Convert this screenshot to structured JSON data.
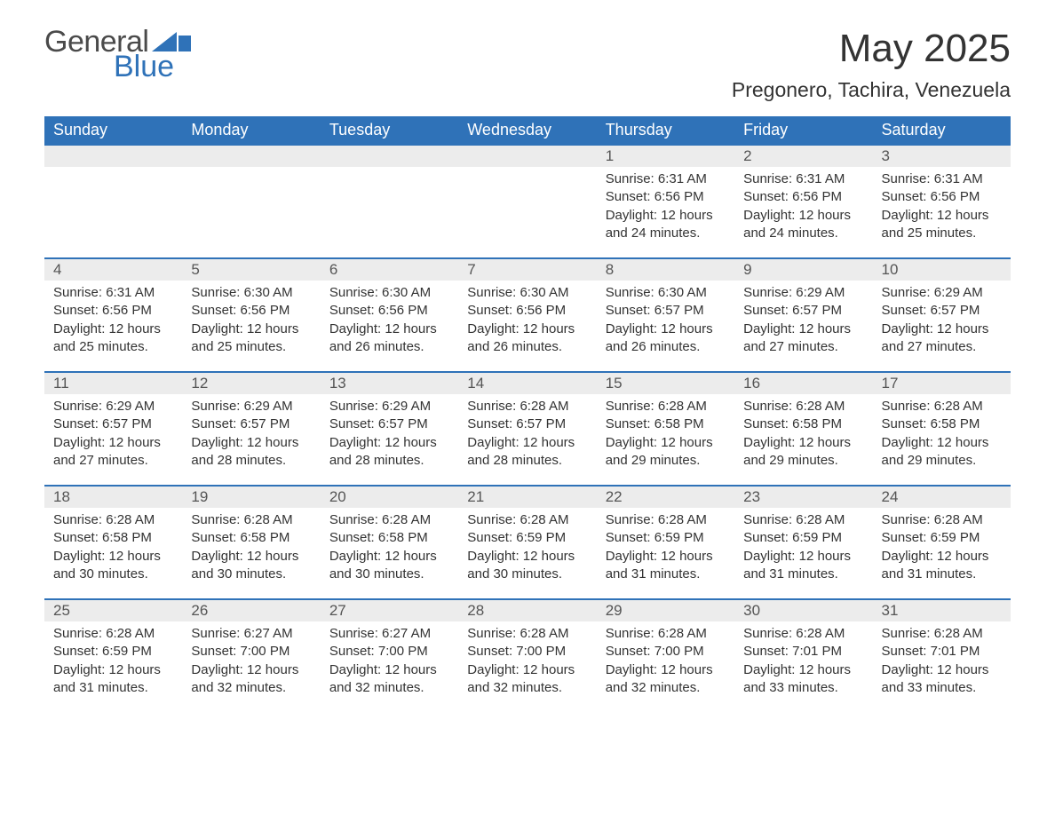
{
  "brand": {
    "part1": "General",
    "part2": "Blue",
    "flag_color": "#2f72b8"
  },
  "title": "May 2025",
  "location": "Pregonero, Tachira, Venezuela",
  "colors": {
    "header_bg": "#2f72b8",
    "header_text": "#ffffff",
    "daynum_bg": "#ececec",
    "border": "#2f72b8",
    "text": "#333333",
    "page_bg": "#ffffff"
  },
  "columns": [
    "Sunday",
    "Monday",
    "Tuesday",
    "Wednesday",
    "Thursday",
    "Friday",
    "Saturday"
  ],
  "weeks": [
    [
      null,
      null,
      null,
      null,
      {
        "n": "1",
        "sunrise": "6:31 AM",
        "sunset": "6:56 PM",
        "daylight": "12 hours and 24 minutes."
      },
      {
        "n": "2",
        "sunrise": "6:31 AM",
        "sunset": "6:56 PM",
        "daylight": "12 hours and 24 minutes."
      },
      {
        "n": "3",
        "sunrise": "6:31 AM",
        "sunset": "6:56 PM",
        "daylight": "12 hours and 25 minutes."
      }
    ],
    [
      {
        "n": "4",
        "sunrise": "6:31 AM",
        "sunset": "6:56 PM",
        "daylight": "12 hours and 25 minutes."
      },
      {
        "n": "5",
        "sunrise": "6:30 AM",
        "sunset": "6:56 PM",
        "daylight": "12 hours and 25 minutes."
      },
      {
        "n": "6",
        "sunrise": "6:30 AM",
        "sunset": "6:56 PM",
        "daylight": "12 hours and 26 minutes."
      },
      {
        "n": "7",
        "sunrise": "6:30 AM",
        "sunset": "6:56 PM",
        "daylight": "12 hours and 26 minutes."
      },
      {
        "n": "8",
        "sunrise": "6:30 AM",
        "sunset": "6:57 PM",
        "daylight": "12 hours and 26 minutes."
      },
      {
        "n": "9",
        "sunrise": "6:29 AM",
        "sunset": "6:57 PM",
        "daylight": "12 hours and 27 minutes."
      },
      {
        "n": "10",
        "sunrise": "6:29 AM",
        "sunset": "6:57 PM",
        "daylight": "12 hours and 27 minutes."
      }
    ],
    [
      {
        "n": "11",
        "sunrise": "6:29 AM",
        "sunset": "6:57 PM",
        "daylight": "12 hours and 27 minutes."
      },
      {
        "n": "12",
        "sunrise": "6:29 AM",
        "sunset": "6:57 PM",
        "daylight": "12 hours and 28 minutes."
      },
      {
        "n": "13",
        "sunrise": "6:29 AM",
        "sunset": "6:57 PM",
        "daylight": "12 hours and 28 minutes."
      },
      {
        "n": "14",
        "sunrise": "6:28 AM",
        "sunset": "6:57 PM",
        "daylight": "12 hours and 28 minutes."
      },
      {
        "n": "15",
        "sunrise": "6:28 AM",
        "sunset": "6:58 PM",
        "daylight": "12 hours and 29 minutes."
      },
      {
        "n": "16",
        "sunrise": "6:28 AM",
        "sunset": "6:58 PM",
        "daylight": "12 hours and 29 minutes."
      },
      {
        "n": "17",
        "sunrise": "6:28 AM",
        "sunset": "6:58 PM",
        "daylight": "12 hours and 29 minutes."
      }
    ],
    [
      {
        "n": "18",
        "sunrise": "6:28 AM",
        "sunset": "6:58 PM",
        "daylight": "12 hours and 30 minutes."
      },
      {
        "n": "19",
        "sunrise": "6:28 AM",
        "sunset": "6:58 PM",
        "daylight": "12 hours and 30 minutes."
      },
      {
        "n": "20",
        "sunrise": "6:28 AM",
        "sunset": "6:58 PM",
        "daylight": "12 hours and 30 minutes."
      },
      {
        "n": "21",
        "sunrise": "6:28 AM",
        "sunset": "6:59 PM",
        "daylight": "12 hours and 30 minutes."
      },
      {
        "n": "22",
        "sunrise": "6:28 AM",
        "sunset": "6:59 PM",
        "daylight": "12 hours and 31 minutes."
      },
      {
        "n": "23",
        "sunrise": "6:28 AM",
        "sunset": "6:59 PM",
        "daylight": "12 hours and 31 minutes."
      },
      {
        "n": "24",
        "sunrise": "6:28 AM",
        "sunset": "6:59 PM",
        "daylight": "12 hours and 31 minutes."
      }
    ],
    [
      {
        "n": "25",
        "sunrise": "6:28 AM",
        "sunset": "6:59 PM",
        "daylight": "12 hours and 31 minutes."
      },
      {
        "n": "26",
        "sunrise": "6:27 AM",
        "sunset": "7:00 PM",
        "daylight": "12 hours and 32 minutes."
      },
      {
        "n": "27",
        "sunrise": "6:27 AM",
        "sunset": "7:00 PM",
        "daylight": "12 hours and 32 minutes."
      },
      {
        "n": "28",
        "sunrise": "6:28 AM",
        "sunset": "7:00 PM",
        "daylight": "12 hours and 32 minutes."
      },
      {
        "n": "29",
        "sunrise": "6:28 AM",
        "sunset": "7:00 PM",
        "daylight": "12 hours and 32 minutes."
      },
      {
        "n": "30",
        "sunrise": "6:28 AM",
        "sunset": "7:01 PM",
        "daylight": "12 hours and 33 minutes."
      },
      {
        "n": "31",
        "sunrise": "6:28 AM",
        "sunset": "7:01 PM",
        "daylight": "12 hours and 33 minutes."
      }
    ]
  ],
  "labels": {
    "sunrise": "Sunrise: ",
    "sunset": "Sunset: ",
    "daylight": "Daylight: "
  }
}
